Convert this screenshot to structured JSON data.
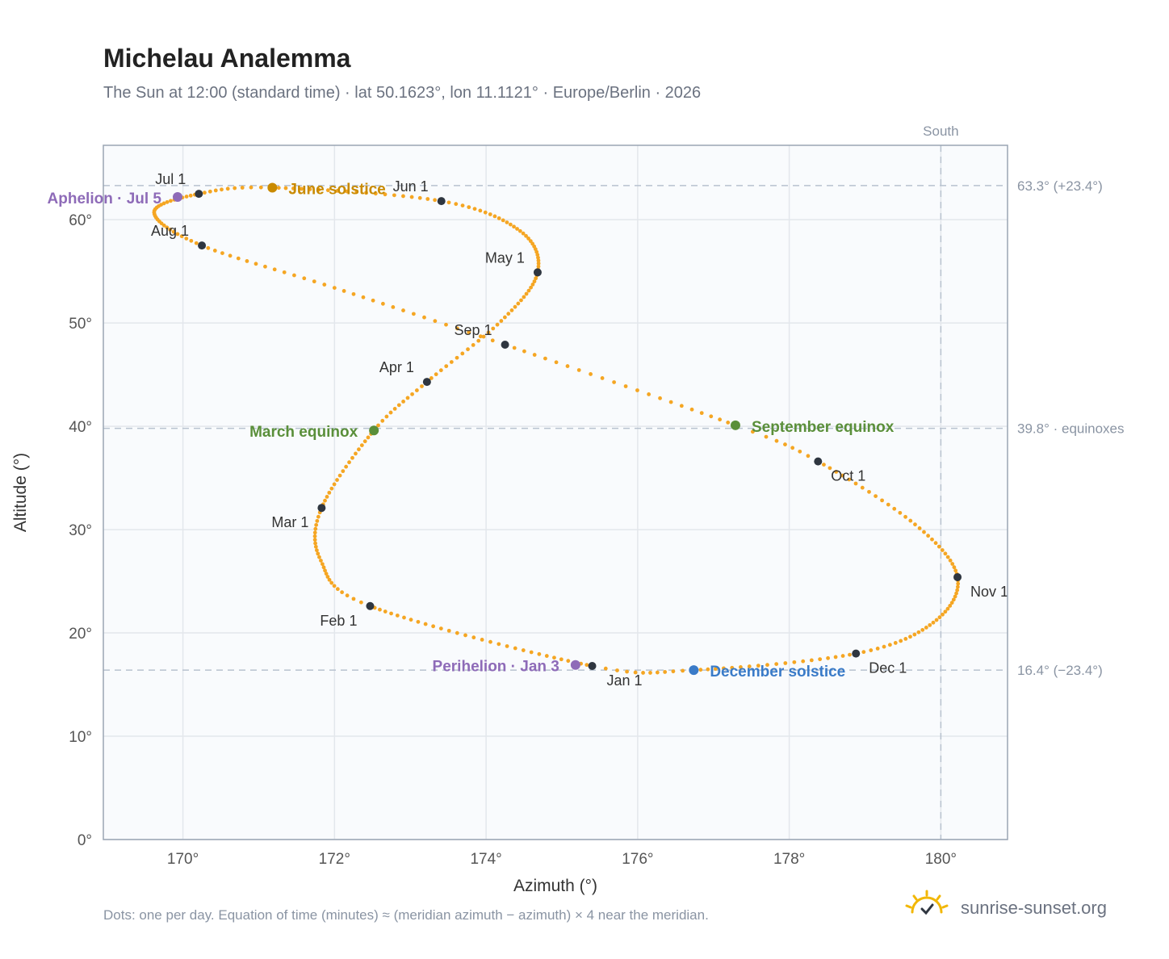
{
  "title": "Michelau Analemma",
  "subtitle": "The Sun at 12:00 (standard time) · lat 50.1623°, lon 11.1121° · Europe/Berlin · 2026",
  "footnote": "Dots: one per day. Equation of time (minutes) ≈ (meridian azimuth − azimuth) × 4 near the meridian.",
  "brand": {
    "text": "sunrise-sunset.org"
  },
  "colors": {
    "curve": "#f5a623",
    "month": "#2f3640",
    "equinox": "#5a8f3a",
    "june_solstice": "#c98a00",
    "december_solstice": "#3a7bc8",
    "apsis": "#8e6bb8",
    "grid": "#e3e7ec",
    "reference": "#b8c2cf"
  },
  "chart_data": {
    "type": "scatter",
    "xlabel": "Azimuth (°)",
    "ylabel": "Altitude (°)",
    "xlim": [
      168.95,
      180.88
    ],
    "ylim": [
      0,
      67.2
    ],
    "xticks": [
      170,
      172,
      174,
      176,
      178,
      180
    ],
    "xtick_labels": [
      "170°",
      "172°",
      "174°",
      "176°",
      "178°",
      "180°"
    ],
    "yticks": [
      0,
      10,
      20,
      30,
      40,
      50,
      60
    ],
    "ytick_labels": [
      "0°",
      "10°",
      "20°",
      "30°",
      "40°",
      "50°",
      "60°"
    ],
    "grid": true,
    "reference_lines": [
      {
        "axis": "y",
        "value": 63.3,
        "label": "63.3° (+23.4°)"
      },
      {
        "axis": "y",
        "value": 39.8,
        "label": "39.8° · equinoxes"
      },
      {
        "axis": "y",
        "value": 16.4,
        "label": "16.4° (−23.4°)"
      },
      {
        "axis": "x",
        "value": 180,
        "label": "South"
      }
    ],
    "months": [
      {
        "label": "Jan 1",
        "x": 175.4,
        "y": 16.8
      },
      {
        "label": "Feb 1",
        "x": 172.47,
        "y": 22.6
      },
      {
        "label": "Mar 1",
        "x": 171.83,
        "y": 32.1
      },
      {
        "label": "Apr 1",
        "x": 173.22,
        "y": 44.3
      },
      {
        "label": "May 1",
        "x": 174.68,
        "y": 54.9
      },
      {
        "label": "Jun 1",
        "x": 173.41,
        "y": 61.8
      },
      {
        "label": "Jul 1",
        "x": 170.21,
        "y": 62.5
      },
      {
        "label": "Aug 1",
        "x": 170.25,
        "y": 57.5
      },
      {
        "label": "Sep 1",
        "x": 174.25,
        "y": 47.9
      },
      {
        "label": "Oct 1",
        "x": 178.38,
        "y": 36.6
      },
      {
        "label": "Nov 1",
        "x": 180.22,
        "y": 25.4
      },
      {
        "label": "Dec 1",
        "x": 178.88,
        "y": 18.0
      }
    ],
    "events": [
      {
        "label": "March equinox",
        "x": 172.52,
        "y": 39.6,
        "kind": "equinox"
      },
      {
        "label": "June solstice",
        "x": 171.18,
        "y": 63.1,
        "kind": "june_solstice"
      },
      {
        "label": "September equinox",
        "x": 177.29,
        "y": 40.1,
        "kind": "equinox"
      },
      {
        "label": "December solstice",
        "x": 176.74,
        "y": 16.4,
        "kind": "december_solstice"
      },
      {
        "label": "Aphelion · Jul 5",
        "x": 169.93,
        "y": 62.2,
        "kind": "apsis"
      },
      {
        "label": "Perihelion · Jan 3",
        "x": 175.18,
        "y": 16.9,
        "kind": "apsis"
      }
    ],
    "curve_anchors": [
      {
        "day": 1,
        "x": 175.4,
        "y": 16.8
      },
      {
        "day": 32,
        "x": 172.47,
        "y": 22.6
      },
      {
        "day": 46,
        "x": 171.82,
        "y": 27.0
      },
      {
        "day": 60,
        "x": 171.83,
        "y": 32.1
      },
      {
        "day": 79,
        "x": 172.52,
        "y": 39.6
      },
      {
        "day": 91,
        "x": 173.22,
        "y": 44.3
      },
      {
        "day": 106,
        "x": 174.2,
        "y": 50.2
      },
      {
        "day": 121,
        "x": 174.68,
        "y": 54.9
      },
      {
        "day": 136,
        "x": 174.45,
        "y": 58.9
      },
      {
        "day": 152,
        "x": 173.41,
        "y": 61.8
      },
      {
        "day": 172,
        "x": 171.18,
        "y": 63.1
      },
      {
        "day": 182,
        "x": 170.21,
        "y": 62.5
      },
      {
        "day": 197,
        "x": 169.62,
        "y": 60.7
      },
      {
        "day": 213,
        "x": 170.25,
        "y": 57.5
      },
      {
        "day": 228,
        "x": 172.0,
        "y": 53.4
      },
      {
        "day": 244,
        "x": 174.25,
        "y": 47.9
      },
      {
        "day": 266,
        "x": 177.29,
        "y": 40.1
      },
      {
        "day": 274,
        "x": 178.38,
        "y": 36.6
      },
      {
        "day": 290,
        "x": 179.66,
        "y": 30.5
      },
      {
        "day": 305,
        "x": 180.22,
        "y": 25.4
      },
      {
        "day": 320,
        "x": 179.9,
        "y": 21.0
      },
      {
        "day": 335,
        "x": 178.88,
        "y": 18.0
      },
      {
        "day": 355,
        "x": 176.74,
        "y": 16.4
      },
      {
        "day": 366,
        "x": 175.4,
        "y": 16.8
      }
    ]
  }
}
